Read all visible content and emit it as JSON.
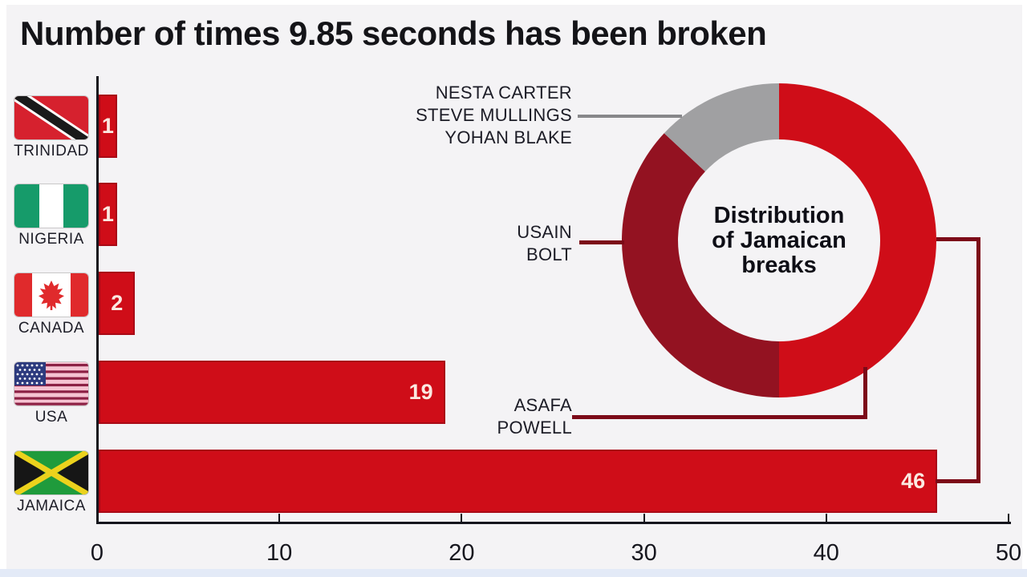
{
  "title": "Number of times 9.85 seconds has been broken",
  "colors": {
    "background": "#f4f3f5",
    "bar_red": "#cf0d18",
    "maroon": "#931221",
    "slice_gray": "#a0a0a2",
    "leader_dark": "#7c0a18",
    "leader_gray": "#87878a",
    "axis": "#15151d",
    "bar_value_text": "#fbe9e1"
  },
  "chart_data": [
    {
      "type": "bar",
      "orientation": "horizontal",
      "title": "Number of times 9.85 seconds has been broken",
      "categories": [
        "TRINIDAD",
        "NIGERIA",
        "CANADA",
        "USA",
        "JAMAICA"
      ],
      "values": [
        1,
        1,
        2,
        19,
        46
      ],
      "xlim": [
        0,
        50
      ],
      "x_ticks": [
        0,
        10,
        20,
        30,
        40,
        50
      ],
      "bar_color": "#cf0d18",
      "value_labels_inside_bars": true,
      "flags": [
        "trinidad-flag",
        "nigeria-flag",
        "canada-flag",
        "usa-flag",
        "jamaica-flag"
      ]
    },
    {
      "type": "pie",
      "donut": true,
      "title": "Distribution of Jamaican breaks",
      "center_label_lines": [
        "Distribution",
        "of Jamaican",
        "breaks"
      ],
      "start_angle_deg": 0,
      "direction": "clockwise",
      "total": 46,
      "slices": [
        {
          "label": "ASAFA POWELL",
          "value": 23,
          "color": "#cf0d18"
        },
        {
          "label": "USAIN BOLT",
          "value": 17,
          "color": "#931221"
        },
        {
          "label": "NESTA CARTER / STEVE MULLINGS / YOHAN BLAKE",
          "value": 6,
          "color": "#a0a0a2"
        }
      ]
    }
  ],
  "annotations": {
    "group_lines": [
      "NESTA CARTER",
      "STEVE MULLINGS",
      "YOHAN BLAKE"
    ],
    "bolt_lines": [
      "USAIN",
      "BOLT"
    ],
    "powell_lines": [
      "ASAFA",
      "POWELL"
    ]
  }
}
